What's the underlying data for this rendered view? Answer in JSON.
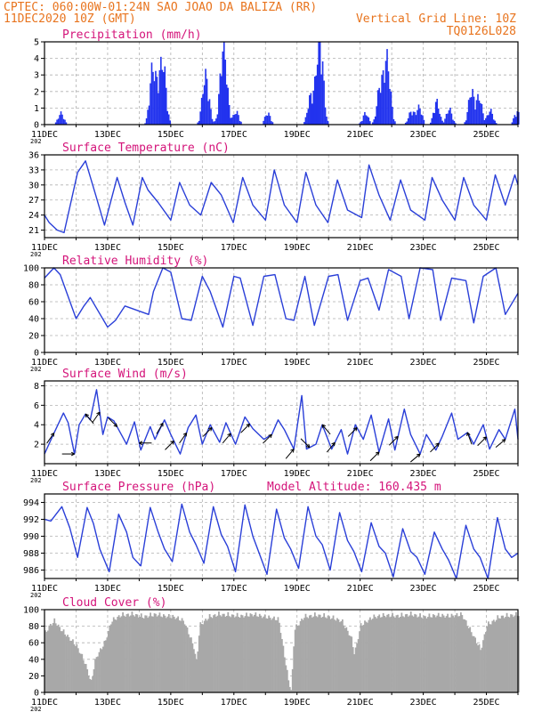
{
  "header": {
    "line1": "CPTEC:   060:00W-01:24N  SAO JOAO DA BALIZA (RR)",
    "line2": "11DEC2020 10Z (GMT)",
    "grid_note": "Vertical Grid Line: 10Z",
    "run_id": "TQ0126L028",
    "year_stub": "202"
  },
  "colors": {
    "header": "#e8741e",
    "panel_title": "#d4147a",
    "series_line": "#2a3fd8",
    "precip_bar": "#2233ee",
    "cloud_fill": "#a8a8a8",
    "grid": "#b0b0b0",
    "wind_arrow": "#000000"
  },
  "x_axis": {
    "start": "11DEC2020 10Z",
    "days": 15,
    "tick_labels": [
      "11DEC",
      "13DEC",
      "15DEC",
      "17DEC",
      "19DEC",
      "21DEC",
      "23DEC",
      "25DEC"
    ]
  },
  "chart_data": [
    {
      "type": "bar",
      "title": "Precipitation  (mm/h)",
      "ylim": [
        0,
        5
      ],
      "yticks": [
        "0",
        "1",
        "2",
        "3",
        "4",
        "5"
      ],
      "peaks": [
        [
          0.5,
          0.8
        ],
        [
          3.4,
          3.8
        ],
        [
          3.6,
          2.2
        ],
        [
          3.75,
          3.7
        ],
        [
          5.05,
          2.5
        ],
        [
          5.15,
          1.4
        ],
        [
          5.6,
          3.1
        ],
        [
          5.7,
          3.3
        ],
        [
          6.05,
          0.9
        ],
        [
          7.05,
          0.8
        ],
        [
          8.4,
          1.8
        ],
        [
          8.6,
          2.0
        ],
        [
          8.7,
          2.8
        ],
        [
          8.75,
          2.6
        ],
        [
          10.15,
          0.8
        ],
        [
          10.6,
          2.5
        ],
        [
          10.8,
          3.5
        ],
        [
          10.9,
          1.6
        ],
        [
          11.6,
          0.9
        ],
        [
          11.85,
          1.2
        ],
        [
          12.4,
          1.6
        ],
        [
          12.8,
          1.1
        ],
        [
          13.5,
          2.3
        ],
        [
          13.75,
          1.9
        ],
        [
          14.1,
          1.0
        ],
        [
          14.95,
          0.9
        ]
      ],
      "gridlines": true
    },
    {
      "type": "line",
      "title": "Surface Temperature (nC)",
      "ylim": [
        19.5,
        36
      ],
      "yticks": [
        "21",
        "24",
        "27",
        "30",
        "33",
        "36"
      ],
      "x": [
        0,
        0.15,
        0.4,
        0.62,
        1.05,
        1.3,
        1.62,
        1.9,
        2.3,
        2.55,
        2.8,
        3.1,
        3.28,
        3.6,
        4.0,
        4.28,
        4.6,
        4.95,
        5.28,
        5.6,
        5.98,
        6.28,
        6.6,
        7.0,
        7.28,
        7.6,
        8.0,
        8.28,
        8.6,
        8.98,
        9.28,
        9.6,
        10.05,
        10.28,
        10.6,
        10.95,
        11.28,
        11.6,
        12.05,
        12.28,
        12.6,
        13.0,
        13.28,
        13.6,
        14.0,
        14.28,
        14.6,
        14.9,
        15
      ],
      "values": [
        24,
        22.5,
        21,
        20.5,
        32.5,
        34.8,
        28,
        22,
        31.5,
        26.5,
        22,
        31.5,
        29,
        26.5,
        23,
        30.5,
        26,
        24,
        30.5,
        28,
        22.5,
        31.5,
        26,
        23,
        33,
        26,
        22.5,
        32.5,
        26,
        22.5,
        31,
        25,
        23.5,
        34,
        28,
        23,
        31,
        25,
        23,
        31.5,
        27,
        23,
        31.5,
        26,
        23,
        32,
        26,
        32,
        30
      ]
    },
    {
      "type": "line",
      "title": "Relative Humidity (%)",
      "ylim": [
        0,
        100
      ],
      "yticks": [
        "0",
        "20",
        "40",
        "60",
        "80",
        "100"
      ],
      "x": [
        0,
        0.3,
        0.5,
        1.0,
        1.25,
        1.45,
        2.0,
        2.25,
        2.55,
        3.3,
        3.45,
        3.75,
        4.0,
        4.35,
        4.65,
        5.0,
        5.25,
        5.65,
        6.0,
        6.2,
        6.6,
        6.95,
        7.3,
        7.65,
        7.9,
        8.25,
        8.55,
        9.0,
        9.3,
        9.6,
        10.0,
        10.25,
        10.6,
        10.9,
        11.3,
        11.55,
        11.9,
        12.3,
        12.55,
        12.9,
        13.35,
        13.6,
        13.9,
        14.3,
        14.6,
        15
      ],
      "values": [
        88,
        100,
        92,
        40,
        55,
        65,
        30,
        38,
        55,
        45,
        72,
        100,
        95,
        40,
        38,
        90,
        72,
        30,
        90,
        88,
        32,
        90,
        92,
        40,
        38,
        90,
        32,
        90,
        92,
        38,
        85,
        88,
        50,
        98,
        90,
        40,
        100,
        98,
        38,
        88,
        85,
        35,
        90,
        100,
        45,
        70
      ]
    },
    {
      "type": "line",
      "title": "Surface Wind (m/s)",
      "ylim": [
        0,
        8.5
      ],
      "yticks": [
        "2",
        "4",
        "6",
        "8"
      ],
      "x": [
        0,
        0.25,
        0.6,
        0.75,
        0.95,
        1.1,
        1.3,
        1.45,
        1.65,
        1.85,
        2.0,
        2.2,
        2.6,
        2.85,
        3.05,
        3.35,
        3.5,
        3.8,
        4.0,
        4.3,
        4.55,
        4.8,
        5.0,
        5.25,
        5.55,
        5.75,
        6.05,
        6.35,
        6.6,
        6.95,
        7.2,
        7.4,
        7.6,
        7.9,
        8.15,
        8.3,
        8.6,
        8.8,
        9.1,
        9.4,
        9.6,
        9.85,
        10.1,
        10.35,
        10.6,
        10.9,
        11.1,
        11.4,
        11.6,
        11.9,
        12.1,
        12.4,
        12.6,
        12.9,
        13.1,
        13.4,
        13.6,
        13.9,
        14.1,
        14.4,
        14.6,
        14.9,
        15
      ],
      "values": [
        1.0,
        2.8,
        5.2,
        4.2,
        1.0,
        4.0,
        5.1,
        4.5,
        7.6,
        3.0,
        4.8,
        4.4,
        2.0,
        4.3,
        1.4,
        3.8,
        2.5,
        4.5,
        3.0,
        1.0,
        3.7,
        5.0,
        2.0,
        4.0,
        2.2,
        4.2,
        2.0,
        4.8,
        3.6,
        2.5,
        3.0,
        4.5,
        3.5,
        1.5,
        7.0,
        1.5,
        2.0,
        4.0,
        1.5,
        3.5,
        1.0,
        4.0,
        2.5,
        5.0,
        1.2,
        4.6,
        1.4,
        5.6,
        3.0,
        1.0,
        3.0,
        1.4,
        2.8,
        5.2,
        2.5,
        3.2,
        2.0,
        4.0,
        1.5,
        3.5,
        2.5,
        5.6,
        2.5
      ],
      "arrows": [
        [
          0.3,
          215
        ],
        [
          0.95,
          270
        ],
        [
          1.3,
          140
        ],
        [
          1.75,
          215
        ],
        [
          2.3,
          315
        ],
        [
          3.0,
          90
        ],
        [
          3.75,
          210
        ],
        [
          4.1,
          225
        ],
        [
          4.5,
          215
        ],
        [
          5.3,
          225
        ],
        [
          5.9,
          220
        ],
        [
          6.5,
          225
        ],
        [
          7.2,
          225
        ],
        [
          7.9,
          220
        ],
        [
          8.4,
          315
        ],
        [
          8.8,
          140
        ],
        [
          9.2,
          220
        ],
        [
          9.9,
          225
        ],
        [
          10.6,
          225
        ],
        [
          11.2,
          225
        ],
        [
          11.9,
          230
        ],
        [
          12.5,
          225
        ],
        [
          13.4,
          160
        ],
        [
          14.0,
          225
        ],
        [
          14.6,
          230
        ]
      ]
    },
    {
      "type": "line",
      "title": "Surface Pressure (hPa)",
      "annotation": "Model Altitude: 160.435  m",
      "ylim": [
        985,
        995
      ],
      "yticks": [
        "986",
        "988",
        "990",
        "992",
        "994"
      ],
      "x": [
        0,
        0.2,
        0.55,
        0.8,
        1.05,
        1.35,
        1.55,
        1.75,
        2.05,
        2.35,
        2.6,
        2.8,
        3.05,
        3.35,
        3.6,
        3.8,
        4.05,
        4.35,
        4.6,
        4.8,
        5.05,
        5.35,
        5.6,
        5.8,
        6.05,
        6.35,
        6.6,
        6.8,
        7.05,
        7.35,
        7.6,
        7.8,
        8.05,
        8.35,
        8.6,
        8.8,
        9.05,
        9.35,
        9.6,
        9.8,
        10.05,
        10.35,
        10.6,
        10.8,
        11.05,
        11.35,
        11.6,
        11.8,
        12.05,
        12.35,
        12.6,
        12.8,
        13.05,
        13.35,
        13.6,
        13.8,
        14.05,
        14.35,
        14.6,
        14.8,
        15
      ],
      "values": [
        992,
        991.8,
        993.5,
        991,
        987.5,
        993.4,
        991.5,
        988.5,
        985.8,
        992.6,
        990.5,
        987.5,
        986.5,
        993.4,
        990.5,
        988.5,
        987.0,
        993.8,
        990.5,
        989,
        986.8,
        993.5,
        990.2,
        988.8,
        985.8,
        993.7,
        990,
        988,
        985.5,
        993.2,
        989.8,
        988.5,
        986.2,
        993.5,
        990,
        989,
        986.0,
        992.8,
        989.5,
        988.2,
        985.8,
        991.6,
        988.8,
        988.0,
        985.2,
        990.9,
        988.2,
        987.5,
        985.5,
        990.5,
        988.5,
        987.2,
        985.0,
        991.3,
        988.5,
        987.5,
        985.0,
        992.2,
        988.5,
        987.5,
        988
      ]
    },
    {
      "type": "area",
      "title": "Cloud Cover (%)",
      "ylim": [
        0,
        100
      ],
      "yticks": [
        "0",
        "20",
        "40",
        "60",
        "80",
        "100"
      ],
      "x": [
        0,
        0.15,
        0.3,
        0.5,
        0.75,
        1.0,
        1.2,
        1.35,
        1.45,
        1.6,
        1.75,
        1.9,
        2.1,
        2.4,
        2.8,
        3.1,
        3.5,
        3.8,
        4.1,
        4.4,
        4.7,
        4.8,
        4.9,
        5.2,
        5.5,
        5.8,
        6.2,
        6.6,
        7.0,
        7.4,
        7.7,
        7.8,
        7.9,
        8.2,
        8.6,
        9.0,
        9.4,
        9.7,
        9.8,
        10.0,
        10.4,
        10.8,
        11.2,
        11.6,
        12.0,
        12.4,
        12.8,
        13.2,
        13.6,
        13.8,
        14.0,
        14.4,
        14.8,
        15
      ],
      "values": [
        75,
        85,
        90,
        80,
        70,
        60,
        45,
        30,
        15,
        45,
        55,
        65,
        90,
        97,
        98,
        95,
        98,
        96,
        95,
        90,
        60,
        40,
        85,
        95,
        98,
        97,
        96,
        98,
        95,
        92,
        20,
        5,
        80,
        95,
        97,
        95,
        90,
        70,
        50,
        85,
        95,
        97,
        96,
        98,
        95,
        97,
        96,
        98,
        70,
        55,
        85,
        95,
        97,
        98
      ]
    }
  ]
}
